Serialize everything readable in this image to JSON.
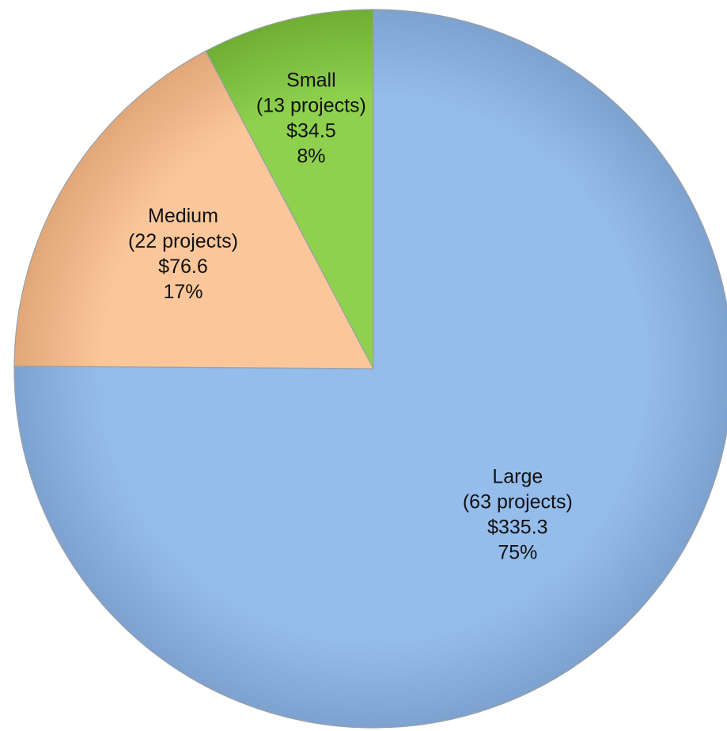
{
  "chart_data": {
    "type": "pie",
    "title": "",
    "start_angle_deg": 0,
    "direction": "clockwise",
    "slices": [
      {
        "name": "Large",
        "projects_label": "(63 projects)",
        "value": 335.3,
        "value_label": "$335.3",
        "percent_label": "75%",
        "color": "#95bdec",
        "edge": "#7ea2cf"
      },
      {
        "name": "Medium",
        "projects_label": "(22 projects)",
        "value": 76.6,
        "value_label": "$76.6",
        "percent_label": "17%",
        "color": "#fbc79a",
        "edge": "#e1a778"
      },
      {
        "name": "Small",
        "projects_label": "(13 projects)",
        "value": 34.5,
        "value_label": "$34.5",
        "percent_label": "8%",
        "color": "#8fd14f",
        "edge": "#6fae34"
      }
    ]
  }
}
